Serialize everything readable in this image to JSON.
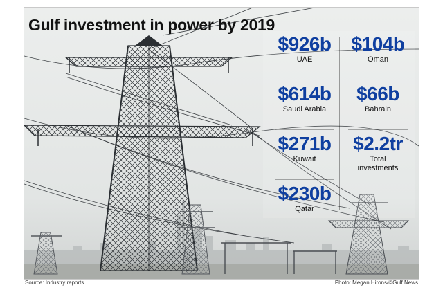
{
  "title": "Gulf investment in power by 2019",
  "stats": {
    "uae": {
      "value": "$926b",
      "label": "UAE"
    },
    "oman": {
      "value": "$104b",
      "label": "Oman"
    },
    "saudi": {
      "value": "$614b",
      "label": "Saudi Arabia"
    },
    "bahrain": {
      "value": "$66b",
      "label": "Bahrain"
    },
    "kuwait": {
      "value": "$271b",
      "label": "Kuwait"
    },
    "total": {
      "value": "$2.2tr",
      "label_line1": "Total",
      "label_line2": "investments"
    },
    "qatar": {
      "value": "$230b",
      "label": "Qatar"
    }
  },
  "footer": {
    "source": "Source: Industry reports",
    "credit": "Photo: Megan Hirons/©Gulf News"
  },
  "colors": {
    "value_blue": "#0f3fa0",
    "sky": "#e6e8e7",
    "tower": "#2b2f33"
  },
  "photo": "electricity pylons with power lines over a hazy city skyline"
}
